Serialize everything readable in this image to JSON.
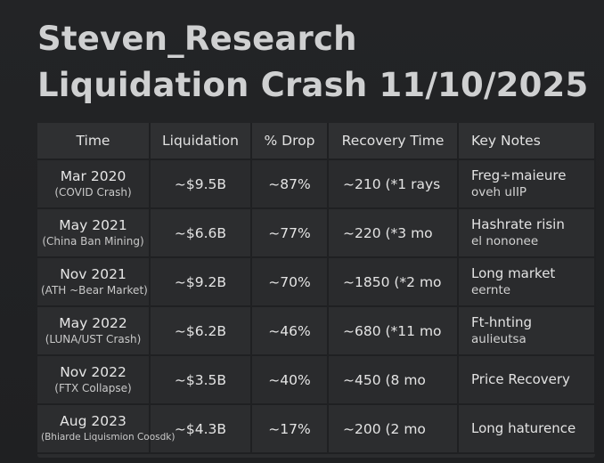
{
  "title": {
    "line1": "Steven_Research",
    "line2": "Liquidation Crash 11/10/2025"
  },
  "table": {
    "headers": [
      "Time",
      "Liquidation",
      "% Drop",
      "Recovery Time",
      "Key Notes"
    ],
    "rows": [
      {
        "date": "Mar 2020",
        "event": "(COVID Crash)",
        "liquidation": "~$9.5B",
        "drop": "~87%",
        "recovery": "~210 (*1 rays",
        "notes1": "Freg÷maieure",
        "notes2": "oveh uIIP"
      },
      {
        "date": "May 2021",
        "event": "(China Ban Mining)",
        "liquidation": "~$6.6B",
        "drop": "~77%",
        "recovery": "~220 (*3 mo",
        "notes1": "Hashrate risin",
        "notes2": "el nononee"
      },
      {
        "date": "Nov 2021",
        "event": "(ATH ~Bear Market)",
        "liquidation": "~$9.2B",
        "drop": "~70%",
        "recovery": "~1850 (*2 mo",
        "notes1": "Long market",
        "notes2": "eernte"
      },
      {
        "date": "May 2022",
        "event": "(LUNA/UST Crash)",
        "liquidation": "~$6.2B",
        "drop": "~46%",
        "recovery": "~680 (*11 mo",
        "notes1": "Ft-hnting",
        "notes2": "aulieutsa"
      },
      {
        "date": "Nov 2022",
        "event": "(FTX Collapse)",
        "liquidation": "~$3.5B",
        "drop": "~40%",
        "recovery": "~450 (8 mo",
        "notes1": "Price Recovery",
        "notes2": ""
      },
      {
        "date": "Aug 2023",
        "event": "(Bhiarde Liquismion Coosdk)",
        "liquidation": "~$4.3B",
        "drop": "~17%",
        "recovery": "~200 (2 mo",
        "notes1": "Long haturence",
        "notes2": ""
      }
    ]
  }
}
